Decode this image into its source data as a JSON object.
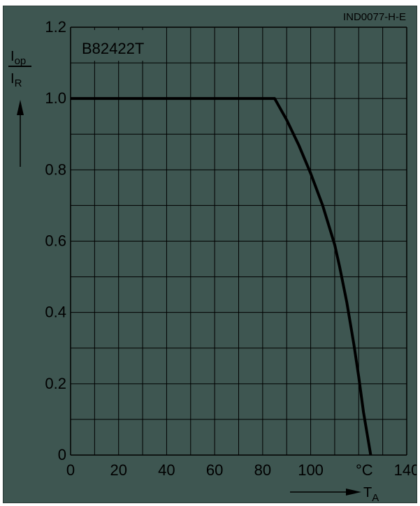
{
  "figure_code": "IND0077-H-E",
  "chart_data": {
    "type": "line",
    "title": "B82422T",
    "xlabel": "T",
    "xlabel_subscript": "A",
    "xunit": "°C",
    "ylabel_num": "I",
    "ylabel_num_sub": "op",
    "ylabel_den": "I",
    "ylabel_den_sub": "R",
    "xlim": [
      0,
      140
    ],
    "ylim": [
      0,
      1.2
    ],
    "x_ticks": [
      "0",
      "20",
      "40",
      "60",
      "80",
      "100",
      "140"
    ],
    "y_ticks": [
      "0",
      "0.2",
      "0.4",
      "0.6",
      "0.8",
      "1.0",
      "1.2"
    ],
    "grid": true,
    "series": [
      {
        "x": [
          0,
          85,
          90,
          95,
          100,
          105,
          110,
          112,
          115,
          118,
          120,
          122,
          125
        ],
        "y": [
          1.0,
          1.0,
          0.94,
          0.87,
          0.79,
          0.7,
          0.59,
          0.53,
          0.43,
          0.31,
          0.22,
          0.12,
          0.0
        ]
      }
    ]
  }
}
